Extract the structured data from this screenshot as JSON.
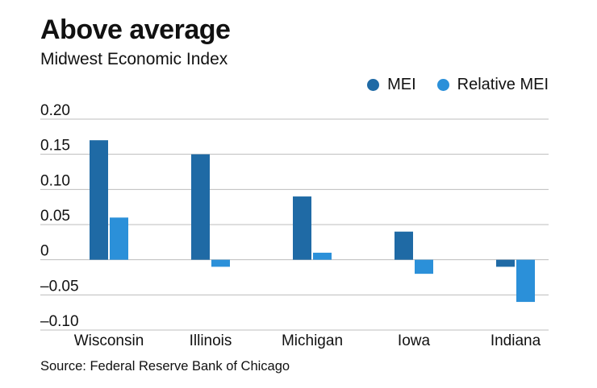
{
  "chart_data": {
    "type": "bar",
    "title": "Above average",
    "subtitle": "Midwest Economic Index",
    "source": "Source: Federal Reserve Bank of Chicago",
    "categories": [
      "Wisconsin",
      "Illinois",
      "Michigan",
      "Iowa",
      "Indiana"
    ],
    "series": [
      {
        "name": "MEI",
        "color": "#1f6aa5",
        "values": [
          0.17,
          0.15,
          0.09,
          0.04,
          -0.01
        ]
      },
      {
        "name": "Relative MEI",
        "color": "#2b90d9",
        "values": [
          0.06,
          -0.01,
          0.01,
          -0.02,
          -0.06
        ]
      }
    ],
    "yticks": [
      0.2,
      0.15,
      0.1,
      0.05,
      0,
      -0.05,
      -0.1
    ],
    "ytick_labels": [
      "0.20",
      "0.15",
      "0.10",
      "0.05",
      "0",
      "–0.05",
      "–0.10"
    ],
    "ylim": [
      -0.1,
      0.2
    ],
    "grid": true,
    "legend": "top-right"
  }
}
